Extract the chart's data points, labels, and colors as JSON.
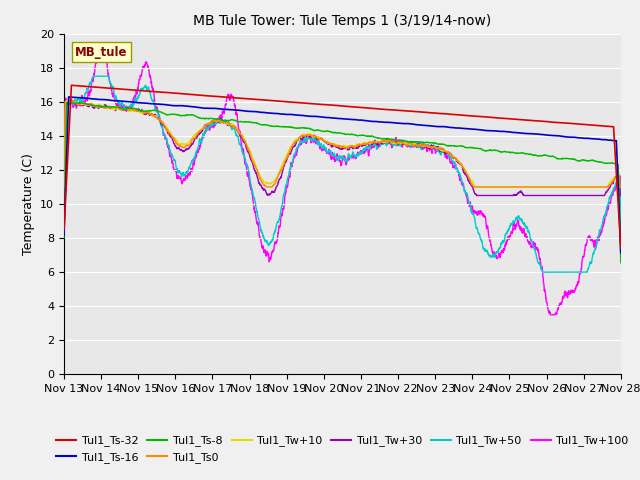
{
  "title": "MB Tule Tower: Tule Temps 1 (3/19/14-now)",
  "ylabel": "Temperature (C)",
  "annotation_text": "MB_tule",
  "ylim": [
    0,
    20
  ],
  "yticks": [
    0,
    2,
    4,
    6,
    8,
    10,
    12,
    14,
    16,
    18,
    20
  ],
  "xtick_labels": [
    "Nov 13",
    "Nov 14",
    "Nov 15",
    "Nov 16",
    "Nov 17",
    "Nov 18",
    "Nov 19",
    "Nov 20",
    "Nov 21",
    "Nov 22",
    "Nov 23",
    "Nov 24",
    "Nov 25",
    "Nov 26",
    "Nov 27",
    "Nov 28"
  ],
  "series_colors": {
    "Tul1_Ts-32": "#dd0000",
    "Tul1_Ts-16": "#0000cc",
    "Tul1_Ts-8": "#00bb00",
    "Tul1_Ts0": "#ff8800",
    "Tul1_Tw+10": "#dddd00",
    "Tul1_Tw+30": "#9900bb",
    "Tul1_Tw+50": "#00cccc",
    "Tul1_Tw+100": "#ff00ff"
  },
  "legend_ncol1": 6,
  "legend_ncol2": 2
}
